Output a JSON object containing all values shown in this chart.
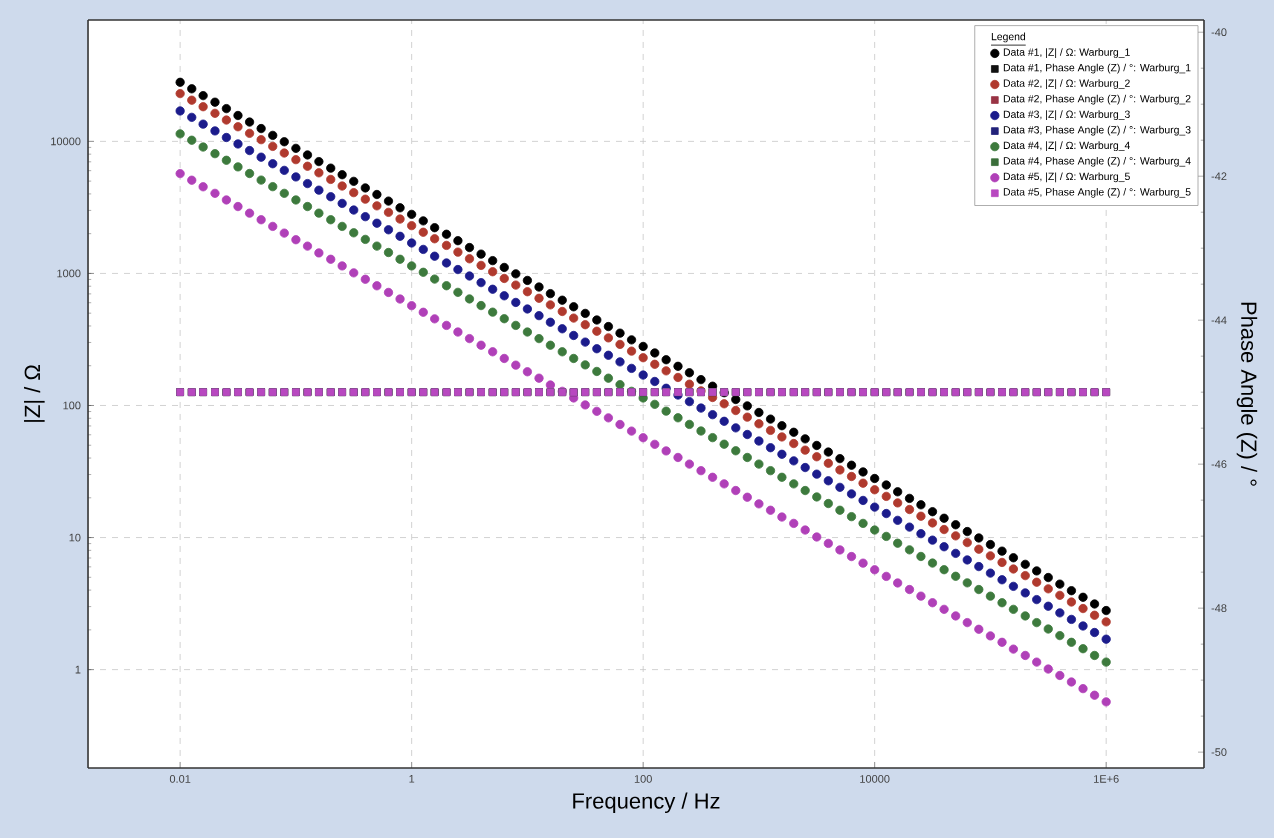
{
  "chart_data": {
    "type": "scatter",
    "xlabel": "Frequency / Hz",
    "ylabel": "|Z| / Ω",
    "y2label": "Phase Angle (Z) / °",
    "legend_title": "Legend",
    "log": "xy",
    "grid": true,
    "legend": "top right",
    "xlim": [
      0.0016,
      7000000
    ],
    "xticks": [
      0.01,
      1,
      100,
      10000,
      {
        "value": 1000000,
        "label": "1E+6"
      }
    ],
    "ylim": [
      0.18,
      83000
    ],
    "yticks": [
      1,
      10,
      100,
      1000,
      10000
    ],
    "y2lim": [
      -50.22,
      -39.83
    ],
    "y2ticks": [
      -50,
      -48,
      -46,
      -44,
      -42,
      -40
    ],
    "x": [
      0.01,
      0.0126,
      0.0158,
      0.02,
      0.0251,
      0.0316,
      0.0398,
      0.0501,
      0.0631,
      0.0794,
      0.1,
      0.126,
      0.158,
      0.2,
      0.251,
      0.316,
      0.398,
      0.501,
      0.631,
      0.794,
      1,
      1.26,
      1.58,
      2,
      2.51,
      3.16,
      3.98,
      5.01,
      6.31,
      7.94,
      10,
      12.6,
      15.8,
      20,
      25.1,
      31.6,
      39.8,
      50.1,
      63.1,
      79.4,
      100,
      126,
      158,
      200,
      251,
      316,
      398,
      501,
      631,
      794,
      1000,
      1260,
      1580,
      2000,
      2510,
      3160,
      3980,
      5010,
      6310,
      7940,
      10000,
      12600,
      15800,
      20000,
      25100,
      31600,
      39800,
      50100,
      63100,
      79400,
      100000,
      126000,
      158000,
      200000,
      251000,
      316000,
      398000,
      501000,
      631000,
      794000,
      1000000
    ],
    "series": [
      {
        "name": "Data #1, |Z| / Ω: Warburg_1",
        "color": "#000000",
        "marker": "circle",
        "values": [
          28000,
          25000,
          22200,
          19800,
          17700,
          15700,
          14000,
          12500,
          11100,
          9930,
          8850,
          7890,
          7030,
          6270,
          5590,
          4980,
          4440,
          3960,
          3530,
          3140,
          2800,
          2500,
          2220,
          1980,
          1770,
          1570,
          1400,
          1250,
          1110,
          993,
          885,
          789,
          703,
          627,
          559,
          498,
          444,
          396,
          353,
          314,
          280,
          250,
          222,
          198,
          177,
          157,
          140,
          125,
          111,
          99.3,
          88.5,
          78.9,
          70.3,
          62.7,
          55.9,
          49.8,
          44.4,
          39.6,
          35.3,
          31.4,
          28,
          25,
          22.2,
          19.8,
          17.7,
          15.7,
          14,
          12.5,
          11.1,
          9.93,
          8.85,
          7.89,
          7.03,
          6.27,
          5.59,
          4.98,
          4.44,
          3.96,
          3.53,
          3.14,
          2.8
        ]
      },
      {
        "name": "Data #1, Phase Angle (Z) / °: Warburg_1",
        "color": "#111111",
        "marker": "square",
        "axis": "y2",
        "values": [
          -45,
          -45,
          -45,
          -45,
          -45,
          -45,
          -45,
          -45,
          -45,
          -45,
          -45,
          -45,
          -45,
          -45,
          -45,
          -45,
          -45,
          -45,
          -45,
          -45,
          -45,
          -45,
          -45,
          -45,
          -45,
          -45,
          -45,
          -45,
          -45,
          -45,
          -45,
          -45,
          -45,
          -45,
          -45,
          -45,
          -45,
          -45,
          -45,
          -45,
          -45,
          -45,
          -45,
          -45,
          -45,
          -45,
          -45,
          -45,
          -45,
          -45,
          -45,
          -45,
          -45,
          -45,
          -45,
          -45,
          -45,
          -45,
          -45,
          -45,
          -45,
          -45,
          -45,
          -45,
          -45,
          -45,
          -45,
          -45,
          -45,
          -45,
          -45,
          -45,
          -45,
          -45,
          -45,
          -45,
          -45,
          -45,
          -45,
          -45,
          -45
        ]
      },
      {
        "name": "Data #2, |Z| / Ω: Warburg_2",
        "color": "#b03a2e",
        "marker": "circle",
        "values": [
          23000,
          20500,
          18300,
          16300,
          14500,
          12900,
          11500,
          10300,
          9160,
          8160,
          7270,
          6480,
          5780,
          5150,
          4590,
          4090,
          3650,
          3250,
          2900,
          2580,
          2300,
          2050,
          1830,
          1630,
          1450,
          1290,
          1150,
          1030,
          916,
          816,
          727,
          648,
          578,
          515,
          459,
          409,
          365,
          325,
          290,
          258,
          230,
          205,
          183,
          163,
          145,
          129,
          115,
          103,
          91.6,
          81.6,
          72.7,
          64.8,
          57.8,
          51.5,
          45.9,
          40.9,
          36.5,
          32.5,
          29,
          25.8,
          23,
          20.5,
          18.3,
          16.3,
          14.5,
          12.9,
          11.5,
          10.3,
          9.16,
          8.16,
          7.27,
          6.48,
          5.78,
          5.15,
          4.59,
          4.09,
          3.65,
          3.25,
          2.9,
          2.58,
          2.3
        ]
      },
      {
        "name": "Data #2, Phase Angle (Z) / °: Warburg_2",
        "color": "#993344",
        "marker": "square",
        "axis": "y2",
        "values": [
          -45,
          -45,
          -45,
          -45,
          -45,
          -45,
          -45,
          -45,
          -45,
          -45,
          -45,
          -45,
          -45,
          -45,
          -45,
          -45,
          -45,
          -45,
          -45,
          -45,
          -45,
          -45,
          -45,
          -45,
          -45,
          -45,
          -45,
          -45,
          -45,
          -45,
          -45,
          -45,
          -45,
          -45,
          -45,
          -45,
          -45,
          -45,
          -45,
          -45,
          -45,
          -45,
          -45,
          -45,
          -45,
          -45,
          -45,
          -45,
          -45,
          -45,
          -45,
          -45,
          -45,
          -45,
          -45,
          -45,
          -45,
          -45,
          -45,
          -45,
          -45,
          -45,
          -45,
          -45,
          -45,
          -45,
          -45,
          -45,
          -45,
          -45,
          -45,
          -45,
          -45,
          -45,
          -45,
          -45,
          -45,
          -45,
          -45,
          -45,
          -45
        ]
      },
      {
        "name": "Data #3, |Z| / Ω: Warburg_3",
        "color": "#1c1c8c",
        "marker": "circle",
        "values": [
          17000,
          15200,
          13500,
          12000,
          10700,
          9560,
          8520,
          7590,
          6770,
          6030,
          5380,
          4790,
          4270,
          3810,
          3390,
          3020,
          2690,
          2400,
          2140,
          1910,
          1700,
          1520,
          1350,
          1200,
          1070,
          956,
          852,
          759,
          677,
          603,
          538,
          479,
          427,
          381,
          339,
          302,
          269,
          240,
          214,
          191,
          170,
          152,
          135,
          120,
          107,
          95.6,
          85.2,
          75.9,
          67.7,
          60.3,
          53.8,
          47.9,
          42.7,
          38.1,
          33.9,
          30.2,
          26.9,
          24,
          21.4,
          19.1,
          17,
          15.2,
          13.5,
          12,
          10.7,
          9.56,
          8.52,
          7.59,
          6.77,
          6.03,
          5.38,
          4.79,
          4.27,
          3.81,
          3.39,
          3.02,
          2.69,
          2.4,
          2.14,
          1.91,
          1.7
        ]
      },
      {
        "name": "Data #3, Phase Angle (Z) / °: Warburg_3",
        "color": "#22227a",
        "marker": "square",
        "axis": "y2",
        "values": [
          -45,
          -45,
          -45,
          -45,
          -45,
          -45,
          -45,
          -45,
          -45,
          -45,
          -45,
          -45,
          -45,
          -45,
          -45,
          -45,
          -45,
          -45,
          -45,
          -45,
          -45,
          -45,
          -45,
          -45,
          -45,
          -45,
          -45,
          -45,
          -45,
          -45,
          -45,
          -45,
          -45,
          -45,
          -45,
          -45,
          -45,
          -45,
          -45,
          -45,
          -45,
          -45,
          -45,
          -45,
          -45,
          -45,
          -45,
          -45,
          -45,
          -45,
          -45,
          -45,
          -45,
          -45,
          -45,
          -45,
          -45,
          -45,
          -45,
          -45,
          -45,
          -45,
          -45,
          -45,
          -45,
          -45,
          -45,
          -45,
          -45,
          -45,
          -45,
          -45,
          -45,
          -45,
          -45,
          -45,
          -45,
          -45,
          -45,
          -45,
          -45
        ]
      },
      {
        "name": "Data #4, |Z| / Ω: Warburg_4",
        "color": "#3d7a3d",
        "marker": "circle",
        "values": [
          11400,
          10200,
          9060,
          8070,
          7190,
          6410,
          5710,
          5090,
          4540,
          4040,
          3600,
          3210,
          2860,
          2550,
          2270,
          2030,
          1810,
          1610,
          1440,
          1280,
          1140,
          1020,
          906,
          807,
          719,
          641,
          571,
          509,
          454,
          404,
          360,
          321,
          286,
          255,
          227,
          203,
          181,
          161,
          144,
          128,
          114,
          102,
          90.6,
          80.7,
          71.9,
          64.1,
          57.1,
          50.9,
          45.4,
          40.4,
          36,
          32.1,
          28.6,
          25.5,
          22.7,
          20.3,
          18.1,
          16.1,
          14.4,
          12.8,
          11.4,
          10.2,
          9.06,
          8.07,
          7.19,
          6.41,
          5.71,
          5.09,
          4.54,
          4.04,
          3.6,
          3.21,
          2.86,
          2.55,
          2.27,
          2.03,
          1.81,
          1.61,
          1.44,
          1.28,
          1.14
        ]
      },
      {
        "name": "Data #4, Phase Angle (Z) / °: Warburg_4",
        "color": "#3a6e3a",
        "marker": "square",
        "axis": "y2",
        "values": [
          -45,
          -45,
          -45,
          -45,
          -45,
          -45,
          -45,
          -45,
          -45,
          -45,
          -45,
          -45,
          -45,
          -45,
          -45,
          -45,
          -45,
          -45,
          -45,
          -45,
          -45,
          -45,
          -45,
          -45,
          -45,
          -45,
          -45,
          -45,
          -45,
          -45,
          -45,
          -45,
          -45,
          -45,
          -45,
          -45,
          -45,
          -45,
          -45,
          -45,
          -45,
          -45,
          -45,
          -45,
          -45,
          -45,
          -45,
          -45,
          -45,
          -45,
          -45,
          -45,
          -45,
          -45,
          -45,
          -45,
          -45,
          -45,
          -45,
          -45,
          -45,
          -45,
          -45,
          -45,
          -45,
          -45,
          -45,
          -45,
          -45,
          -45,
          -45,
          -45,
          -45,
          -45,
          -45,
          -45,
          -45,
          -45,
          -45,
          -45,
          -45
        ]
      },
      {
        "name": "Data #5, |Z| / Ω: Warburg_5",
        "color": "#b040b8",
        "marker": "circle",
        "values": [
          5700,
          5080,
          4530,
          4040,
          3600,
          3210,
          2860,
          2550,
          2270,
          2020,
          1800,
          1610,
          1430,
          1280,
          1140,
          1010,
          903,
          806,
          718,
          640,
          570,
          508,
          453,
          404,
          360,
          321,
          286,
          255,
          227,
          202,
          180,
          161,
          143,
          128,
          114,
          101,
          90.3,
          80.6,
          71.8,
          64,
          57,
          50.8,
          45.3,
          40.4,
          36,
          32.1,
          28.6,
          25.5,
          22.7,
          20.2,
          18,
          16.1,
          14.3,
          12.8,
          11.4,
          10.1,
          9.03,
          8.06,
          7.18,
          6.4,
          5.7,
          5.08,
          4.53,
          4.04,
          3.6,
          3.21,
          2.86,
          2.55,
          2.27,
          2.02,
          1.8,
          1.61,
          1.43,
          1.28,
          1.14,
          1.01,
          0.903,
          0.806,
          0.718,
          0.64,
          0.57
        ]
      },
      {
        "name": "Data #5, Phase Angle (Z) / °: Warburg_5",
        "color": "#b848c0",
        "marker": "square",
        "axis": "y2",
        "values": [
          -45,
          -45,
          -45,
          -45,
          -45,
          -45,
          -45,
          -45,
          -45,
          -45,
          -45,
          -45,
          -45,
          -45,
          -45,
          -45,
          -45,
          -45,
          -45,
          -45,
          -45,
          -45,
          -45,
          -45,
          -45,
          -45,
          -45,
          -45,
          -45,
          -45,
          -45,
          -45,
          -45,
          -45,
          -45,
          -45,
          -45,
          -45,
          -45,
          -45,
          -45,
          -45,
          -45,
          -45,
          -45,
          -45,
          -45,
          -45,
          -45,
          -45,
          -45,
          -45,
          -45,
          -45,
          -45,
          -45,
          -45,
          -45,
          -45,
          -45,
          -45,
          -45,
          -45,
          -45,
          -45,
          -45,
          -45,
          -45,
          -45,
          -45,
          -45,
          -45,
          -45,
          -45,
          -45,
          -45,
          -45,
          -45,
          -45,
          -45,
          -45
        ]
      }
    ]
  }
}
